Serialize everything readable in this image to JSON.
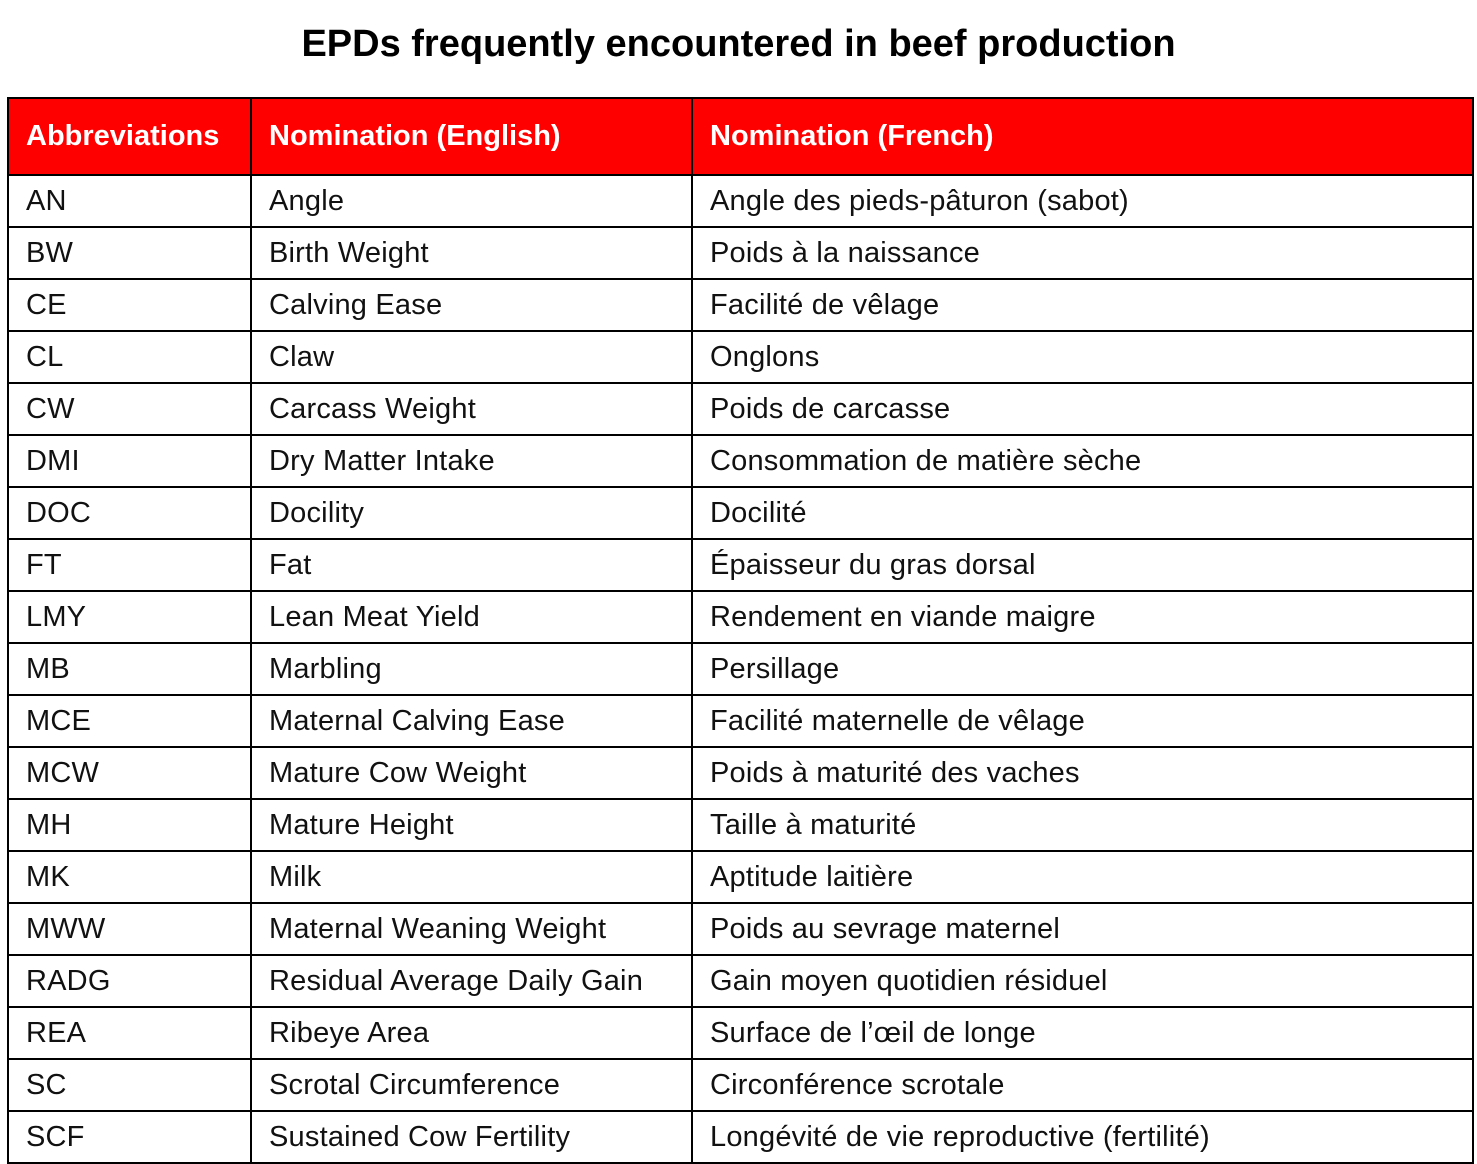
{
  "title": "EPDs frequently encountered in beef production",
  "colors": {
    "header_background": "#ff0000",
    "header_text": "#ffffff",
    "border": "#000000"
  },
  "table": {
    "headers": [
      "Abbreviations",
      "Nomination (English)",
      "Nomination (French)"
    ],
    "rows": [
      [
        "AN",
        "Angle",
        "Angle des pieds-pâturon (sabot)"
      ],
      [
        "BW",
        "Birth Weight",
        "Poids à la naissance"
      ],
      [
        "CE",
        "Calving Ease",
        "Facilité de vêlage"
      ],
      [
        "CL",
        "Claw",
        "Onglons"
      ],
      [
        "CW",
        "Carcass Weight",
        "Poids de carcasse"
      ],
      [
        "DMI",
        "Dry Matter Intake",
        "Consommation de matière sèche"
      ],
      [
        "DOC",
        "Docility",
        "Docilité"
      ],
      [
        "FT",
        "Fat",
        "Épaisseur du gras dorsal"
      ],
      [
        "LMY",
        "Lean Meat Yield",
        "Rendement en viande maigre"
      ],
      [
        "MB",
        "Marbling",
        "Persillage"
      ],
      [
        "MCE",
        "Maternal Calving Ease",
        "Facilité maternelle de vêlage"
      ],
      [
        "MCW",
        "Mature Cow Weight",
        "Poids à maturité des vaches"
      ],
      [
        "MH",
        "Mature Height",
        "Taille à maturité"
      ],
      [
        "MK",
        "Milk",
        "Aptitude laitière"
      ],
      [
        "MWW",
        "Maternal Weaning Weight",
        "Poids au sevrage maternel"
      ],
      [
        "RADG",
        "Residual Average Daily Gain",
        "Gain moyen quotidien résiduel"
      ],
      [
        "REA",
        "Ribeye Area",
        "Surface de l’œil de longe"
      ],
      [
        "SC",
        "Scrotal Circumference",
        "Circonférence scrotale"
      ],
      [
        "SCF",
        "Sustained Cow Fertility",
        "Longévité de vie reproductive (fertilité)"
      ]
    ]
  }
}
